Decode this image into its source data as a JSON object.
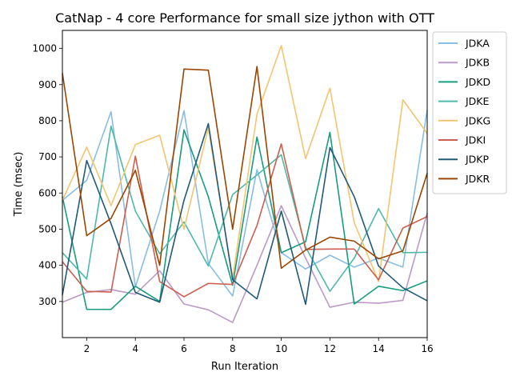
{
  "chart_data": {
    "type": "line",
    "title": "CatNap - 4 core Performance for small size jython with OTT",
    "xlabel": "Run Iteration",
    "ylabel": "Time (msec)",
    "xlim": [
      1,
      16
    ],
    "ylim": [
      200,
      1050
    ],
    "x_ticks": [
      2,
      4,
      6,
      8,
      10,
      12,
      14,
      16
    ],
    "y_ticks": [
      300,
      400,
      500,
      600,
      700,
      800,
      900,
      1000
    ],
    "grid": false,
    "legend_position": "outside-right-top",
    "x": [
      1,
      2,
      3,
      4,
      5,
      6,
      7,
      8,
      9,
      10,
      11,
      12,
      13,
      14,
      15,
      16
    ],
    "series": [
      {
        "name": "JDKA",
        "color": "#88bde6",
        "values": [
          580,
          635,
          825,
          340,
          550,
          828,
          405,
          315,
          665,
          435,
          390,
          428,
          395,
          420,
          395,
          830
        ]
      },
      {
        "name": "JDKB",
        "color": "#bc99c7",
        "values": [
          298,
          325,
          333,
          320,
          385,
          293,
          277,
          242,
          400,
          565,
          420,
          284,
          298,
          295,
          303,
          545
        ]
      },
      {
        "name": "JDKD",
        "color": "#179c7d",
        "values": [
          590,
          278,
          278,
          342,
          300,
          775,
          590,
          345,
          755,
          435,
          465,
          768,
          293,
          342,
          330,
          357
        ]
      },
      {
        "name": "JDKE",
        "color": "#4dbaa7",
        "values": [
          435,
          362,
          785,
          550,
          432,
          520,
          398,
          596,
          650,
          706,
          450,
          328,
          420,
          557,
          435,
          436
        ]
      },
      {
        "name": "JDKG",
        "color": "#f5c46e",
        "values": [
          580,
          727,
          565,
          734,
          760,
          500,
          780,
          365,
          818,
          1008,
          695,
          890,
          518,
          355,
          858,
          765
        ]
      },
      {
        "name": "JDKI",
        "color": "#cc5f4f",
        "values": [
          410,
          328,
          326,
          702,
          355,
          313,
          350,
          347,
          510,
          736,
          444,
          445,
          445,
          360,
          503,
          535
        ]
      },
      {
        "name": "JDKP",
        "color": "#1f5a7a",
        "values": [
          318,
          690,
          515,
          325,
          298,
          580,
          792,
          360,
          307,
          550,
          292,
          726,
          590,
          398,
          338,
          302
        ]
      },
      {
        "name": "JDKR",
        "color": "#9b4500",
        "values": [
          932,
          482,
          530,
          663,
          400,
          943,
          940,
          500,
          950,
          392,
          442,
          478,
          467,
          418,
          440,
          655
        ]
      }
    ]
  }
}
